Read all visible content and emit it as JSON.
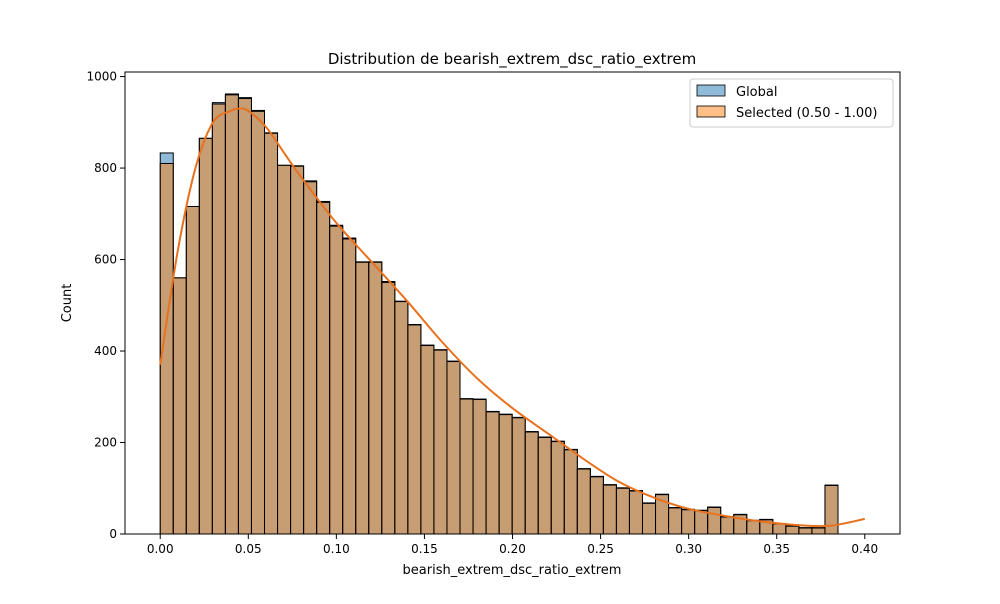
{
  "chart_data": {
    "type": "bar",
    "title": "Distribution de bearish_extrem_dsc_ratio_extrem",
    "xlabel": "bearish_extrem_dsc_ratio_extrem",
    "ylabel": "Count",
    "xlim": [
      -0.02,
      0.42
    ],
    "ylim": [
      0,
      1010
    ],
    "xticks": [
      0.0,
      0.05,
      0.1,
      0.15,
      0.2,
      0.25,
      0.3,
      0.35,
      0.4
    ],
    "xtick_labels": [
      "0.00",
      "0.05",
      "0.10",
      "0.15",
      "0.20",
      "0.25",
      "0.30",
      "0.35",
      "0.40"
    ],
    "yticks": [
      0,
      200,
      400,
      600,
      800,
      1000
    ],
    "ytick_labels": [
      "0",
      "200",
      "400",
      "600",
      "800",
      "1000"
    ],
    "grid": false,
    "legend_position": "top-right",
    "bin_width": 0.0074,
    "bin_start": 0.0,
    "series": [
      {
        "name": "Global",
        "color": "#1f77b4",
        "values": [
          833,
          560,
          716,
          865,
          943,
          962,
          954,
          926,
          877,
          806,
          805,
          772,
          727,
          675,
          647,
          595,
          595,
          552,
          509,
          458,
          413,
          403,
          378,
          296,
          295,
          268,
          262,
          255,
          224,
          212,
          203,
          185,
          143,
          126,
          108,
          101,
          95,
          68,
          87,
          58,
          54,
          52,
          59,
          38,
          43,
          30,
          32,
          23,
          18,
          14,
          14,
          107
        ]
      },
      {
        "name": "Selected (0.50 - 1.00)",
        "color": "#ff7f0e",
        "values": [
          810,
          560,
          716,
          865,
          940,
          960,
          952,
          924,
          876,
          806,
          804,
          770,
          725,
          673,
          645,
          594,
          594,
          550,
          508,
          457,
          412,
          402,
          377,
          295,
          294,
          267,
          261,
          254,
          223,
          211,
          202,
          184,
          142,
          125,
          107,
          100,
          94,
          67,
          86,
          57,
          53,
          51,
          58,
          37,
          42,
          29,
          31,
          22,
          17,
          13,
          13,
          106
        ]
      }
    ],
    "kde": {
      "name": "Selected (0.50 - 1.00)",
      "color": "#e8711e",
      "x": [
        0.0,
        0.01,
        0.02,
        0.03,
        0.04,
        0.045,
        0.05,
        0.06,
        0.07,
        0.08,
        0.1,
        0.12,
        0.14,
        0.16,
        0.18,
        0.2,
        0.22,
        0.24,
        0.26,
        0.28,
        0.3,
        0.32,
        0.34,
        0.36,
        0.38,
        0.4
      ],
      "y": [
        370,
        620,
        800,
        900,
        925,
        930,
        925,
        890,
        835,
        780,
        680,
        595,
        510,
        420,
        340,
        275,
        220,
        165,
        115,
        80,
        55,
        40,
        28,
        20,
        18,
        33
      ]
    }
  }
}
